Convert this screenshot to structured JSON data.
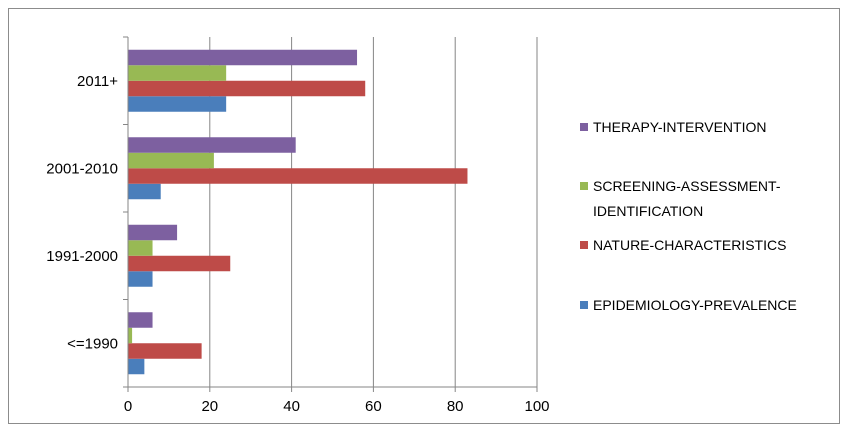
{
  "chart_data": {
    "type": "bar",
    "orientation": "horizontal",
    "title": "",
    "xlabel": "",
    "ylabel": "",
    "categories": [
      "<=1990",
      "1991-2000",
      "2001-2010",
      "2011+"
    ],
    "xlim": [
      0,
      100
    ],
    "x_ticks": [
      "0",
      "20",
      "40",
      "60",
      "80",
      "100"
    ],
    "grid": "vertical",
    "legend_position": "right",
    "series": [
      {
        "name": "EPIDEMIOLOGY-PREVALENCE",
        "color": "#4a7ebb",
        "values": [
          4,
          6,
          8,
          24
        ]
      },
      {
        "name": "NATURE-CHARACTERISTICS",
        "color": "#be4b48",
        "values": [
          18,
          25,
          83,
          58
        ]
      },
      {
        "name": "SCREENING-ASSESSMENT-IDENTIFICATION",
        "color": "#98b954",
        "values": [
          1,
          6,
          21,
          24
        ]
      },
      {
        "name": "THERAPY-INTERVENTION",
        "color": "#7d60a0",
        "values": [
          6,
          12,
          41,
          56
        ]
      }
    ],
    "legend": [
      {
        "lines": [
          "THERAPY-INTERVENTION"
        ],
        "color": "#7d60a0"
      },
      {
        "lines": [
          "SCREENING-ASSESSMENT-",
          "IDENTIFICATION"
        ],
        "color": "#98b954"
      },
      {
        "lines": [
          "NATURE-CHARACTERISTICS"
        ],
        "color": "#be4b48"
      },
      {
        "lines": [
          "EPIDEMIOLOGY-PREVALENCE"
        ],
        "color": "#4a7ebb"
      }
    ]
  }
}
